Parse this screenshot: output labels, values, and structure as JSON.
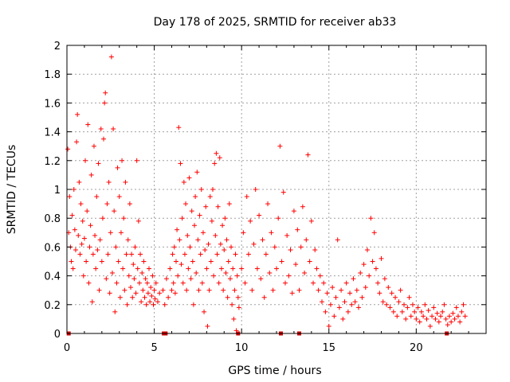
{
  "chart_data": {
    "type": "scatter",
    "title": "Day 178 of 2025, SRMTID for receiver ab33",
    "xlabel": "GPS time / hours",
    "ylabel": "SRMTID / TECUs",
    "xlim": [
      0,
      24
    ],
    "ylim": [
      0,
      2
    ],
    "xticks": [
      0,
      5,
      10,
      15,
      20
    ],
    "yticks": [
      0,
      0.2,
      0.4,
      0.6,
      0.8,
      1,
      1.2,
      1.4,
      1.6,
      1.8,
      2
    ],
    "grid": true,
    "marker": "plus",
    "color": "#ff0000",
    "x_tick_labels": [
      "0",
      "5",
      "10",
      "15",
      "20"
    ],
    "y_tick_labels": [
      "0",
      "0.2",
      "0.4",
      "0.6",
      "0.8",
      "1",
      "1.2",
      "1.4",
      "1.6",
      "1.8",
      "2"
    ],
    "series": [
      {
        "name": "SRMTID",
        "points": [
          [
            0.05,
            1.28
          ],
          [
            0.1,
            0.7
          ],
          [
            0.15,
            0.95
          ],
          [
            0.2,
            0.6
          ],
          [
            0.25,
            0.5
          ],
          [
            0.3,
            0.82
          ],
          [
            0.35,
            0.45
          ],
          [
            0.4,
            1.0
          ],
          [
            0.45,
            0.72
          ],
          [
            0.5,
            0.58
          ],
          [
            0.55,
            1.33
          ],
          [
            0.6,
            1.52
          ],
          [
            0.65,
            0.68
          ],
          [
            0.7,
            1.05
          ],
          [
            0.75,
            0.55
          ],
          [
            0.8,
            0.9
          ],
          [
            0.85,
            0.62
          ],
          [
            0.9,
            0.78
          ],
          [
            0.95,
            0.4
          ],
          [
            1.0,
            0.66
          ],
          [
            1.05,
            1.2
          ],
          [
            1.1,
            0.5
          ],
          [
            1.15,
            0.85
          ],
          [
            1.2,
            1.45
          ],
          [
            1.25,
            0.35
          ],
          [
            1.3,
            0.6
          ],
          [
            1.35,
            0.75
          ],
          [
            1.4,
            1.1
          ],
          [
            1.45,
            0.22
          ],
          [
            1.5,
            0.55
          ],
          [
            1.55,
            1.3
          ],
          [
            1.6,
            0.68
          ],
          [
            1.65,
            0.45
          ],
          [
            1.7,
            0.95
          ],
          [
            1.75,
            0.58
          ],
          [
            1.8,
            1.18
          ],
          [
            1.85,
            0.3
          ],
          [
            1.9,
            0.65
          ],
          [
            1.95,
            1.42
          ],
          [
            2.0,
            0.5
          ],
          [
            2.05,
            0.8
          ],
          [
            2.1,
            1.35
          ],
          [
            2.15,
            1.6
          ],
          [
            2.2,
            1.67
          ],
          [
            2.25,
            0.38
          ],
          [
            2.3,
            0.9
          ],
          [
            2.35,
            0.55
          ],
          [
            2.4,
            1.05
          ],
          [
            2.45,
            0.28
          ],
          [
            2.5,
            0.7
          ],
          [
            2.55,
            1.92
          ],
          [
            2.6,
            0.42
          ],
          [
            2.65,
            1.42
          ],
          [
            2.7,
            0.85
          ],
          [
            2.75,
            0.15
          ],
          [
            2.8,
            0.6
          ],
          [
            2.85,
            0.35
          ],
          [
            2.9,
            1.15
          ],
          [
            2.95,
            0.5
          ],
          [
            3.0,
            0.95
          ],
          [
            3.05,
            0.25
          ],
          [
            3.1,
            0.7
          ],
          [
            3.15,
            1.2
          ],
          [
            3.2,
            0.45
          ],
          [
            3.25,
            0.8
          ],
          [
            3.3,
            0.3
          ],
          [
            3.35,
            1.05
          ],
          [
            3.4,
            0.55
          ],
          [
            3.45,
            0.2
          ],
          [
            3.5,
            0.65
          ],
          [
            3.55,
            0.4
          ],
          [
            3.6,
            0.9
          ],
          [
            3.65,
            0.32
          ],
          [
            3.7,
            0.55
          ],
          [
            3.75,
            0.25
          ],
          [
            3.8,
            0.48
          ],
          [
            3.85,
            0.38
          ],
          [
            3.9,
            0.6
          ],
          [
            3.95,
            0.28
          ],
          [
            4.0,
            1.2
          ],
          [
            4.05,
            0.45
          ],
          [
            4.1,
            0.78
          ],
          [
            4.15,
            0.35
          ],
          [
            4.2,
            0.55
          ],
          [
            4.25,
            0.22
          ],
          [
            4.3,
            0.42
          ],
          [
            4.35,
            0.3
          ],
          [
            4.4,
            0.5
          ],
          [
            4.45,
            0.25
          ],
          [
            4.5,
            0.38
          ],
          [
            4.55,
            0.2
          ],
          [
            4.6,
            0.35
          ],
          [
            4.65,
            0.28
          ],
          [
            4.7,
            0.45
          ],
          [
            4.75,
            0.22
          ],
          [
            4.8,
            0.32
          ],
          [
            4.85,
            0.26
          ],
          [
            4.9,
            0.4
          ],
          [
            4.95,
            0.2
          ],
          [
            5.0,
            0.3
          ],
          [
            5.05,
            0.24
          ],
          [
            5.1,
            0.35
          ],
          [
            5.2,
            0.22
          ],
          [
            5.3,
            0.28
          ],
          [
            5.5,
            0.3
          ],
          [
            5.6,
            0.2
          ],
          [
            5.7,
            0.38
          ],
          [
            5.8,
            0.25
          ],
          [
            5.9,
            0.45
          ],
          [
            6.0,
            0.3
          ],
          [
            6.05,
            0.55
          ],
          [
            6.1,
            0.35
          ],
          [
            6.15,
            0.6
          ],
          [
            6.2,
            0.28
          ],
          [
            6.25,
            0.5
          ],
          [
            6.3,
            0.72
          ],
          [
            6.35,
            0.4
          ],
          [
            6.4,
            1.43
          ],
          [
            6.45,
            0.65
          ],
          [
            6.5,
            1.18
          ],
          [
            6.55,
            0.48
          ],
          [
            6.6,
            0.8
          ],
          [
            6.65,
            0.35
          ],
          [
            6.7,
            1.05
          ],
          [
            6.75,
            0.55
          ],
          [
            6.8,
            0.9
          ],
          [
            6.85,
            0.3
          ],
          [
            6.9,
            0.68
          ],
          [
            6.95,
            0.45
          ],
          [
            7.0,
            1.08
          ],
          [
            7.05,
            0.6
          ],
          [
            7.1,
            0.38
          ],
          [
            7.15,
            0.85
          ],
          [
            7.2,
            0.5
          ],
          [
            7.25,
            0.2
          ],
          [
            7.3,
            0.75
          ],
          [
            7.35,
            0.95
          ],
          [
            7.4,
            0.42
          ],
          [
            7.45,
            1.12
          ],
          [
            7.5,
            0.65
          ],
          [
            7.55,
            0.3
          ],
          [
            7.6,
            0.82
          ],
          [
            7.65,
            0.55
          ],
          [
            7.7,
            1.0
          ],
          [
            7.75,
            0.35
          ],
          [
            7.8,
            0.7
          ],
          [
            7.85,
            0.15
          ],
          [
            7.9,
            0.58
          ],
          [
            7.95,
            0.88
          ],
          [
            8.0,
            0.45
          ],
          [
            8.05,
            0.05
          ],
          [
            8.1,
            0.62
          ],
          [
            8.15,
            0.3
          ],
          [
            8.2,
            0.95
          ],
          [
            8.25,
            0.5
          ],
          [
            8.3,
            0.78
          ],
          [
            8.35,
            1.0
          ],
          [
            8.4,
            0.4
          ],
          [
            8.45,
            1.18
          ],
          [
            8.5,
            0.68
          ],
          [
            8.55,
            1.25
          ],
          [
            8.6,
            0.55
          ],
          [
            8.65,
            0.88
          ],
          [
            8.7,
            0.35
          ],
          [
            8.75,
            1.22
          ],
          [
            8.8,
            0.62
          ],
          [
            8.85,
            0.45
          ],
          [
            8.9,
            0.75
          ],
          [
            8.95,
            0.3
          ],
          [
            9.0,
            0.58
          ],
          [
            9.05,
            0.8
          ],
          [
            9.1,
            0.42
          ],
          [
            9.15,
            0.65
          ],
          [
            9.2,
            0.25
          ],
          [
            9.25,
            0.5
          ],
          [
            9.3,
            0.9
          ],
          [
            9.35,
            0.38
          ],
          [
            9.4,
            0.6
          ],
          [
            9.45,
            0.2
          ],
          [
            9.5,
            0.45
          ],
          [
            9.55,
            0.1
          ],
          [
            9.6,
            0.3
          ],
          [
            9.65,
            0.55
          ],
          [
            9.7,
            0.02
          ],
          [
            9.75,
            0.4
          ],
          [
            9.8,
            0.25
          ],
          [
            9.85,
            0.18
          ],
          [
            10.0,
            0.45
          ],
          [
            10.1,
            0.7
          ],
          [
            10.2,
            0.35
          ],
          [
            10.3,
            0.95
          ],
          [
            10.4,
            0.55
          ],
          [
            10.5,
            0.78
          ],
          [
            10.6,
            0.3
          ],
          [
            10.7,
            0.62
          ],
          [
            10.8,
            1.0
          ],
          [
            10.9,
            0.45
          ],
          [
            11.0,
            0.82
          ],
          [
            11.1,
            0.38
          ],
          [
            11.2,
            0.65
          ],
          [
            11.3,
            0.25
          ],
          [
            11.4,
            0.55
          ],
          [
            11.5,
            0.9
          ],
          [
            11.6,
            0.42
          ],
          [
            11.7,
            0.7
          ],
          [
            11.8,
            0.3
          ],
          [
            11.9,
            0.6
          ],
          [
            12.0,
            0.45
          ],
          [
            12.1,
            0.8
          ],
          [
            12.2,
            1.3
          ],
          [
            12.3,
            0.5
          ],
          [
            12.4,
            0.98
          ],
          [
            12.5,
            0.35
          ],
          [
            12.6,
            0.68
          ],
          [
            12.7,
            0.4
          ],
          [
            12.8,
            0.58
          ],
          [
            12.9,
            0.28
          ],
          [
            13.0,
            0.85
          ],
          [
            13.1,
            0.48
          ],
          [
            13.2,
            0.72
          ],
          [
            13.3,
            0.3
          ],
          [
            13.4,
            0.6
          ],
          [
            13.5,
            0.88
          ],
          [
            13.6,
            0.42
          ],
          [
            13.7,
            0.65
          ],
          [
            13.8,
            1.24
          ],
          [
            13.9,
            0.5
          ],
          [
            14.0,
            0.78
          ],
          [
            14.1,
            0.35
          ],
          [
            14.2,
            0.58
          ],
          [
            14.3,
            0.45
          ],
          [
            14.4,
            0.3
          ],
          [
            14.5,
            0.4
          ],
          [
            14.6,
            0.22
          ],
          [
            14.7,
            0.35
          ],
          [
            14.8,
            0.15
          ],
          [
            14.9,
            0.28
          ],
          [
            15.0,
            0.05
          ],
          [
            15.1,
            0.2
          ],
          [
            15.2,
            0.32
          ],
          [
            15.3,
            0.12
          ],
          [
            15.4,
            0.25
          ],
          [
            15.5,
            0.65
          ],
          [
            15.6,
            0.18
          ],
          [
            15.7,
            0.3
          ],
          [
            15.8,
            0.1
          ],
          [
            15.9,
            0.22
          ],
          [
            16.0,
            0.35
          ],
          [
            16.1,
            0.15
          ],
          [
            16.2,
            0.28
          ],
          [
            16.3,
            0.2
          ],
          [
            16.4,
            0.38
          ],
          [
            16.5,
            0.22
          ],
          [
            16.6,
            0.3
          ],
          [
            16.7,
            0.18
          ],
          [
            16.8,
            0.42
          ],
          [
            16.9,
            0.25
          ],
          [
            17.0,
            0.48
          ],
          [
            17.1,
            0.32
          ],
          [
            17.2,
            0.58
          ],
          [
            17.3,
            0.4
          ],
          [
            17.4,
            0.8
          ],
          [
            17.5,
            0.5
          ],
          [
            17.6,
            0.7
          ],
          [
            17.7,
            0.45
          ],
          [
            17.8,
            0.35
          ],
          [
            17.9,
            0.28
          ],
          [
            18.0,
            0.52
          ],
          [
            18.1,
            0.22
          ],
          [
            18.2,
            0.38
          ],
          [
            18.3,
            0.2
          ],
          [
            18.4,
            0.32
          ],
          [
            18.5,
            0.18
          ],
          [
            18.6,
            0.28
          ],
          [
            18.7,
            0.15
          ],
          [
            18.8,
            0.25
          ],
          [
            18.9,
            0.12
          ],
          [
            19.0,
            0.22
          ],
          [
            19.1,
            0.3
          ],
          [
            19.2,
            0.15
          ],
          [
            19.3,
            0.2
          ],
          [
            19.4,
            0.1
          ],
          [
            19.5,
            0.18
          ],
          [
            19.6,
            0.25
          ],
          [
            19.7,
            0.12
          ],
          [
            19.8,
            0.2
          ],
          [
            19.9,
            0.15
          ],
          [
            20.0,
            0.1
          ],
          [
            20.1,
            0.18
          ],
          [
            20.2,
            0.08
          ],
          [
            20.3,
            0.15
          ],
          [
            20.4,
            0.12
          ],
          [
            20.5,
            0.2
          ],
          [
            20.6,
            0.1
          ],
          [
            20.7,
            0.16
          ],
          [
            20.8,
            0.05
          ],
          [
            20.9,
            0.12
          ],
          [
            21.0,
            0.18
          ],
          [
            21.1,
            0.1
          ],
          [
            21.2,
            0.14
          ],
          [
            21.3,
            0.08
          ],
          [
            21.4,
            0.12
          ],
          [
            21.5,
            0.15
          ],
          [
            21.6,
            0.2
          ],
          [
            21.7,
            0.1
          ],
          [
            21.8,
            0.06
          ],
          [
            21.9,
            0.12
          ],
          [
            22.0,
            0.08
          ],
          [
            22.1,
            0.14
          ],
          [
            22.2,
            0.1
          ],
          [
            22.3,
            0.18
          ],
          [
            22.4,
            0.12
          ],
          [
            22.5,
            0.08
          ],
          [
            22.6,
            0.15
          ],
          [
            22.7,
            0.2
          ],
          [
            22.8,
            0.12
          ]
        ]
      }
    ],
    "flag_markers_x": [
      0.1,
      5.55,
      5.65,
      9.8,
      12.25,
      13.3,
      21.75
    ]
  }
}
